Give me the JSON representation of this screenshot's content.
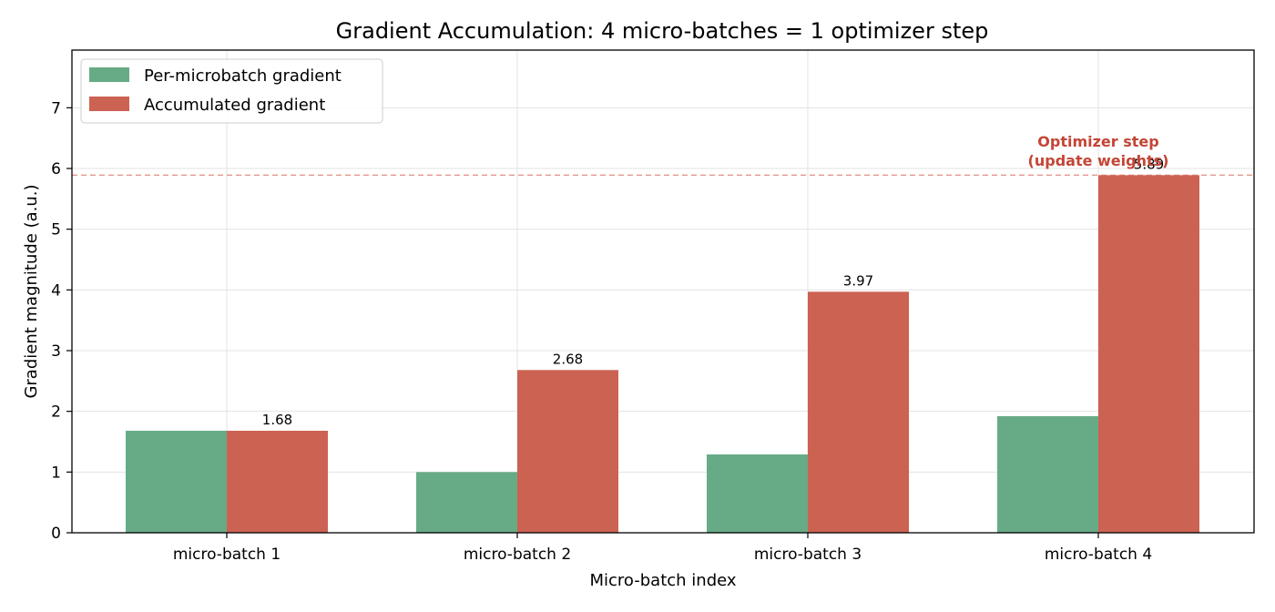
{
  "chart_data": {
    "type": "bar",
    "title": "Gradient Accumulation: 4 micro-batches = 1 optimizer step",
    "xlabel": "Micro-batch index",
    "ylabel": "Gradient magnitude (a.u.)",
    "categories": [
      "micro-batch 1",
      "micro-batch 2",
      "micro-batch 3",
      "micro-batch 4"
    ],
    "ylim": [
      0,
      7.95
    ],
    "yticks": [
      0,
      1,
      2,
      3,
      4,
      5,
      6,
      7
    ],
    "grid": true,
    "legend_position": "top-left",
    "series": [
      {
        "name": "Per-microbatch gradient",
        "color": "#67ab86",
        "values": [
          1.68,
          1.0,
          1.29,
          1.92
        ]
      },
      {
        "name": "Accumulated gradient",
        "color": "#cc6252",
        "values": [
          1.68,
          2.68,
          3.97,
          5.89
        ],
        "data_labels": [
          "1.68",
          "2.68",
          "3.97",
          "5.89"
        ]
      }
    ],
    "reference_line": {
      "y": 5.89,
      "style": "dashed",
      "color": "#e4988c"
    },
    "annotation": {
      "lines": [
        "Optimizer step",
        "(update weights)"
      ],
      "color": "#c44536"
    }
  }
}
